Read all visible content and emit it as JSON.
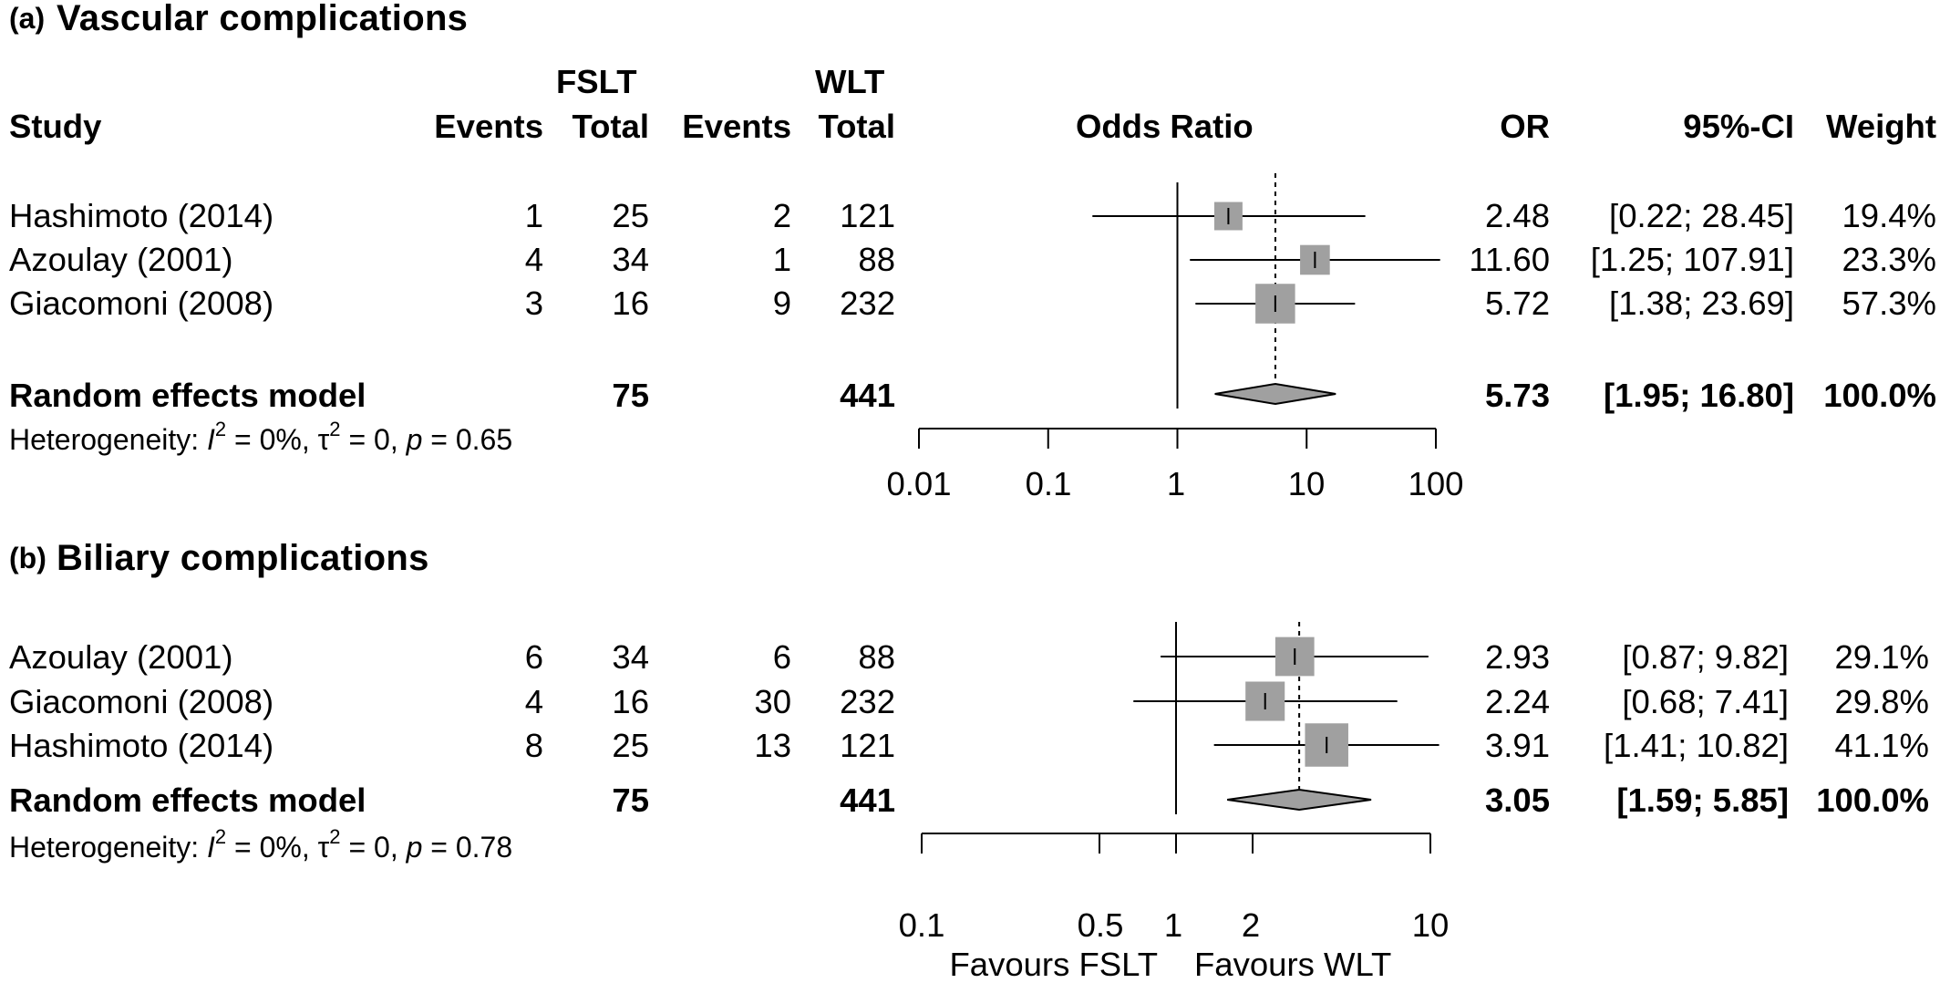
{
  "panels": [
    {
      "tag": "(a)",
      "title": "Vascular complications",
      "headers": {
        "group1": "FSLT",
        "group2": "WLT",
        "study": "Study",
        "events1": "Events",
        "total1": "Total",
        "events2": "Events",
        "total2": "Total",
        "odds_ratio": "Odds Ratio",
        "or": "OR",
        "ci": "95%-CI",
        "weight": "Weight"
      },
      "studies": [
        {
          "name": "Hashimoto  (2014)",
          "e1": "1",
          "t1": "25",
          "e2": "2",
          "t2": "121",
          "or_text": "2.48",
          "ci_text": "[0.22;  28.45]",
          "weight": "19.4%"
        },
        {
          "name": "Azoulay (2001)",
          "e1": "4",
          "t1": "34",
          "e2": "1",
          "t2": "88",
          "or_text": "11.60",
          "ci_text": "[1.25; 107.91]",
          "weight": "23.3%"
        },
        {
          "name": "Giacomoni (2008)",
          "e1": "3",
          "t1": "16",
          "e2": "9",
          "t2": "232",
          "or_text": "5.72",
          "ci_text": "[1.38;  23.69]",
          "weight": "57.3%"
        }
      ],
      "pooled": {
        "label": "Random effects model",
        "t1": "75",
        "t2": "441",
        "or_text": "5.73",
        "ci_text": "[1.95;  16.80]",
        "weight": "100.0%"
      },
      "heterogeneity": {
        "prefix": "Heterogeneity: ",
        "i2": "I",
        "i2_sup": "2",
        "i2_val": " = 0%, ",
        "tau": "τ",
        "tau_sup": "2",
        "tau_val": " = 0, ",
        "p": "p",
        "p_val": " = 0.65"
      },
      "axis": {
        "ticks": [
          "0.01",
          "0.1",
          "1",
          "10",
          "100"
        ]
      }
    },
    {
      "tag": "(b)",
      "title": "Biliary complications",
      "studies": [
        {
          "name": "Azoulay (2001)",
          "e1": "6",
          "t1": "34",
          "e2": "6",
          "t2": "88",
          "or_text": "2.93",
          "ci_text": "[0.87;  9.82]",
          "weight": "29.1%"
        },
        {
          "name": "Giacomoni (2008)",
          "e1": "4",
          "t1": "16",
          "e2": "30",
          "t2": "232",
          "or_text": "2.24",
          "ci_text": "[0.68;  7.41]",
          "weight": "29.8%"
        },
        {
          "name": "Hashimoto  (2014)",
          "e1": "8",
          "t1": "25",
          "e2": "13",
          "t2": "121",
          "or_text": "3.91",
          "ci_text": "[1.41; 10.82]",
          "weight": "41.1%"
        }
      ],
      "pooled": {
        "label": "Random effects model",
        "t1": "75",
        "t2": "441",
        "or_text": "3.05",
        "ci_text": "[1.59;  5.85]",
        "weight": "100.0%"
      },
      "heterogeneity": {
        "prefix": "Heterogeneity: ",
        "i2": "I",
        "i2_sup": "2",
        "i2_val": " = 0%, ",
        "tau": "τ",
        "tau_sup": "2",
        "tau_val": " = 0, ",
        "p": "p",
        "p_val": " = 0.78"
      },
      "axis": {
        "ticks": [
          "0.1",
          "0.5",
          "1",
          "2",
          "10"
        ],
        "favours_left": "Favours FSLT",
        "favours_right": "Favours WLT"
      }
    }
  ],
  "chart_data": [
    {
      "type": "forest",
      "title": "Vascular complications",
      "scale": "log",
      "xlim": [
        0.01,
        100
      ],
      "xticks": [
        0.01,
        0.1,
        1,
        10,
        100
      ],
      "null_value": 1,
      "series": [
        {
          "name": "Hashimoto  (2014)",
          "or": 2.48,
          "lower": 0.22,
          "upper": 28.45,
          "weight": 19.4
        },
        {
          "name": "Azoulay (2001)",
          "or": 11.6,
          "lower": 1.25,
          "upper": 107.91,
          "weight": 23.3
        },
        {
          "name": "Giacomoni (2008)",
          "or": 5.72,
          "lower": 1.38,
          "upper": 23.69,
          "weight": 57.3
        }
      ],
      "pooled": {
        "name": "Random effects model",
        "or": 5.73,
        "lower": 1.95,
        "upper": 16.8,
        "weight": 100.0
      },
      "colors": {
        "box": "#a0a0a0",
        "diamond": "#a0a0a0",
        "line": "#000000"
      }
    },
    {
      "type": "forest",
      "title": "Biliary complications",
      "scale": "log",
      "xlim": [
        0.1,
        10
      ],
      "xticks": [
        0.1,
        0.5,
        1,
        2,
        10
      ],
      "null_value": 1,
      "series": [
        {
          "name": "Azoulay (2001)",
          "or": 2.93,
          "lower": 0.87,
          "upper": 9.82,
          "weight": 29.1
        },
        {
          "name": "Giacomoni (2008)",
          "or": 2.24,
          "lower": 0.68,
          "upper": 7.41,
          "weight": 29.8
        },
        {
          "name": "Hashimoto  (2014)",
          "or": 3.91,
          "lower": 1.41,
          "upper": 10.82,
          "weight": 41.1
        }
      ],
      "pooled": {
        "name": "Random effects model",
        "or": 3.05,
        "lower": 1.59,
        "upper": 5.85,
        "weight": 100.0
      },
      "colors": {
        "box": "#a0a0a0",
        "diamond": "#a0a0a0",
        "line": "#000000"
      }
    }
  ]
}
